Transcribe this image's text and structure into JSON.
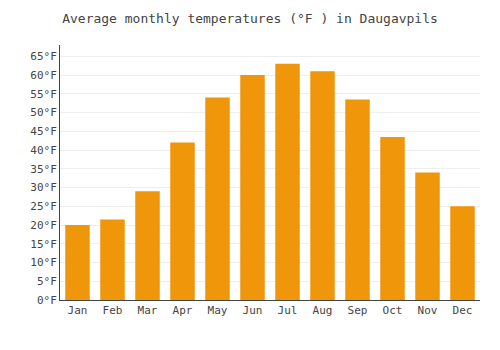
{
  "chart_data": {
    "type": "bar",
    "title": "Average monthly temperatures (°F ) in Daugavpils",
    "categories": [
      "Jan",
      "Feb",
      "Mar",
      "Apr",
      "May",
      "Jun",
      "Jul",
      "Aug",
      "Sep",
      "Oct",
      "Nov",
      "Dec"
    ],
    "values": [
      20,
      21.5,
      29,
      42,
      54,
      60,
      63,
      61,
      53.5,
      43.5,
      34,
      25
    ],
    "color": "#F0960A",
    "ylim": [
      0,
      68
    ],
    "yticks": [
      {
        "value": 0,
        "label": "0°F"
      },
      {
        "value": 5,
        "label": "5°F"
      },
      {
        "value": 10,
        "label": "10°F"
      },
      {
        "value": 15,
        "label": "15°F"
      },
      {
        "value": 20,
        "label": "20°F"
      },
      {
        "value": 25,
        "label": "25°F"
      },
      {
        "value": 30,
        "label": "30°F"
      },
      {
        "value": 35,
        "label": "35°F"
      },
      {
        "value": 40,
        "label": "40°F"
      },
      {
        "value": 45,
        "label": "45°F"
      },
      {
        "value": 50,
        "label": "50°F"
      },
      {
        "value": 55,
        "label": "55°F"
      },
      {
        "value": 60,
        "label": "60°F"
      },
      {
        "value": 65,
        "label": "65°F"
      }
    ],
    "grid": true
  }
}
